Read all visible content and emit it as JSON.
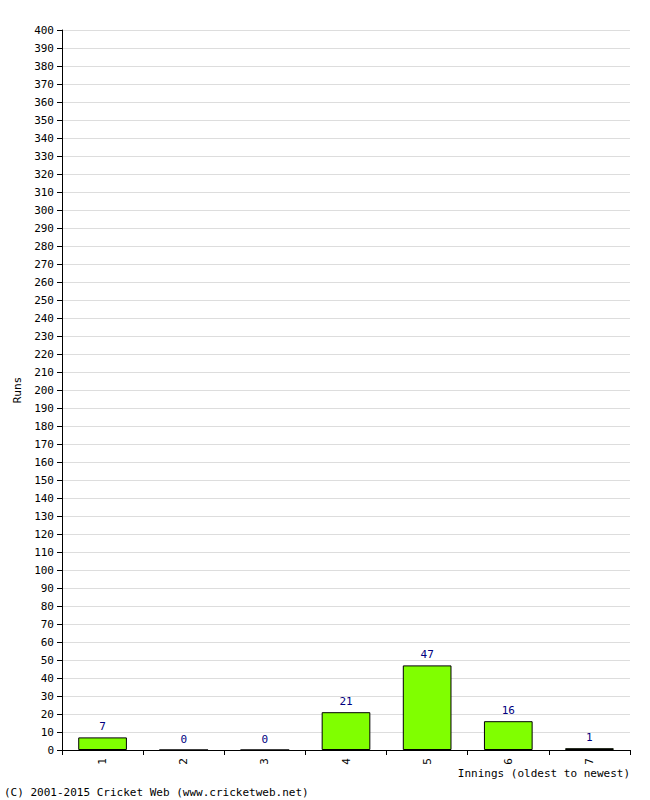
{
  "chart_data": {
    "type": "bar",
    "x_label": "Innings (oldest to newest)",
    "y_label": "Runs",
    "categories": [
      "1",
      "2",
      "3",
      "4",
      "5",
      "6",
      "7"
    ],
    "values": [
      7,
      0,
      0,
      21,
      47,
      16,
      1
    ],
    "color": "#80ff00",
    "ylim": [
      0,
      400
    ],
    "yticks": [
      0,
      10,
      20,
      30,
      40,
      50,
      60,
      70,
      80,
      90,
      100,
      110,
      120,
      130,
      140,
      150,
      160,
      170,
      180,
      190,
      200,
      210,
      220,
      230,
      240,
      250,
      260,
      270,
      280,
      290,
      300,
      310,
      320,
      330,
      340,
      350,
      360,
      370,
      380,
      390,
      400
    ],
    "grid": true,
    "data_labels": true,
    "annotations": [
      "(C) 2001-2015 Cricket Web (www.cricketweb.net)"
    ]
  }
}
